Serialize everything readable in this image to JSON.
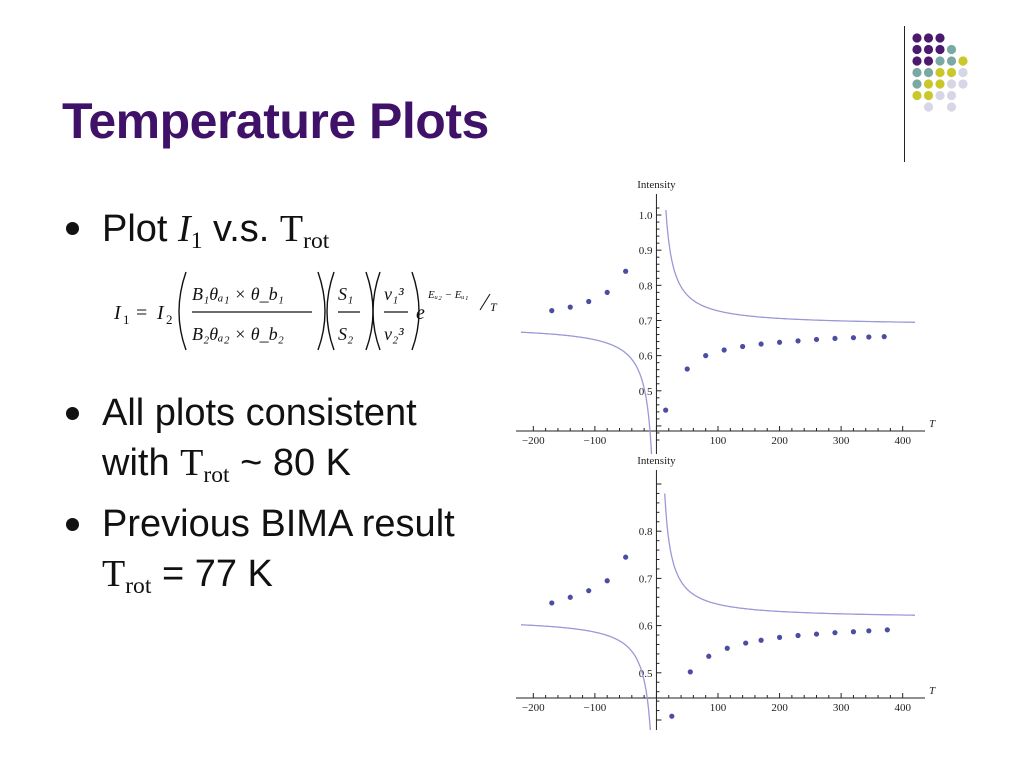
{
  "title": "Temperature Plots",
  "bullets": [
    {
      "prefix": "Plot ",
      "var": "I",
      "var_sub": "1",
      "middle": " v.s. ",
      "t": "T",
      "t_sub": "rot"
    },
    {
      "line1": "All plots consistent",
      "line2_prefix": "with ",
      "t": "T",
      "t_sub": "rot",
      "line2_suffix": " ~ 80 K"
    },
    {
      "line1": "Previous BIMA result",
      "t": "T",
      "t_sub": "rot",
      "line2_suffix": " = 77 K"
    }
  ],
  "formula": {
    "lhs": "I",
    "lhs_sub": "1",
    "eq": "=",
    "rhs": "I",
    "rhs_sub": "2",
    "num1": "B₁θₐ₁ × θ_b₁",
    "den1": "B₂θₐ₂ × θ_b₂",
    "num2": "S₁",
    "den2": "S₂",
    "num3": "ν₁³",
    "den3": "ν₂³",
    "exp_base": "e",
    "exp_num": "Eᵤ₂ − Eᵤ₁",
    "exp_den": "T"
  },
  "decoration": {
    "dot_colors": [
      "#4b1a6e",
      "#7aa8a3",
      "#c9c72a",
      "#d6d6e6"
    ]
  },
  "chart_data": [
    {
      "type": "line",
      "title": "",
      "xlabel": "T",
      "ylabel": "Intensity",
      "xlim": [
        -220,
        420
      ],
      "ylim": [
        0.36,
        1.02
      ],
      "xticks": [
        -200,
        -100,
        100,
        200,
        300,
        400
      ],
      "yticks": [
        0.5,
        0.6,
        0.7,
        0.8,
        0.9,
        1.0
      ],
      "xtick_labels": [
        "−200",
        "−100",
        "100",
        "200",
        "300",
        "400"
      ],
      "ytick_labels": [
        "0.5",
        "0.6",
        "0.7",
        "0.8",
        "0.9",
        "1.0"
      ],
      "curve_coeffs": {
        "a": 0.685,
        "b": 6.0
      },
      "points_x": [
        -170,
        -140,
        -110,
        -80,
        -50,
        15,
        50,
        80,
        110,
        140,
        170,
        200,
        230,
        260,
        290,
        320,
        345,
        370
      ],
      "points_y": [
        0.728,
        0.738,
        0.754,
        0.78,
        0.84,
        0.445,
        0.562,
        0.6,
        0.616,
        0.626,
        0.633,
        0.638,
        0.642,
        0.646,
        0.649,
        0.651,
        0.653,
        0.654
      ]
    },
    {
      "type": "line",
      "title": "",
      "xlabel": "T",
      "ylabel": "Intensity",
      "xlim": [
        -220,
        420
      ],
      "ylim": [
        0.4,
        0.9
      ],
      "xticks": [
        -200,
        -100,
        100,
        200,
        300,
        400
      ],
      "yticks": [
        0.5,
        0.6,
        0.7,
        0.8
      ],
      "xtick_labels": [
        "−200",
        "−100",
        "100",
        "200",
        "300",
        "400"
      ],
      "ytick_labels": [
        "0.5",
        "0.6",
        "0.7",
        "0.8"
      ],
      "curve_coeffs": {
        "a": 0.615,
        "b": 4.8
      },
      "points_x": [
        -170,
        -140,
        -110,
        -80,
        -50,
        25,
        55,
        85,
        115,
        145,
        170,
        200,
        230,
        260,
        290,
        320,
        345,
        375
      ],
      "points_y": [
        0.648,
        0.66,
        0.674,
        0.695,
        0.745,
        0.408,
        0.502,
        0.535,
        0.552,
        0.563,
        0.569,
        0.575,
        0.579,
        0.582,
        0.585,
        0.587,
        0.589,
        0.591
      ]
    }
  ]
}
